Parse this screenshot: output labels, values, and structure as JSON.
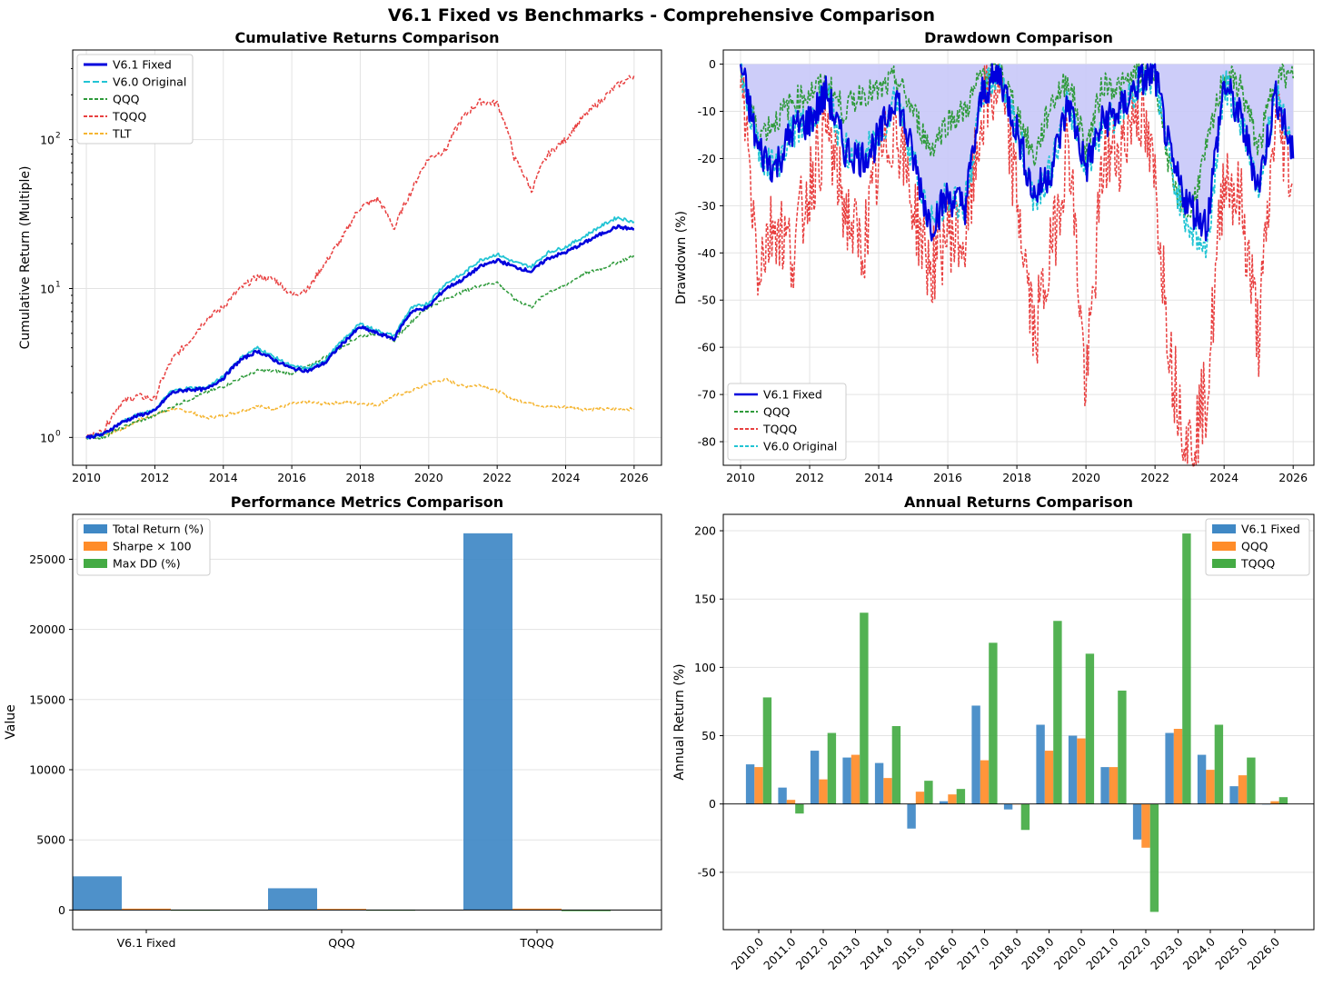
{
  "suptitle": "V6.1 Fixed vs Benchmarks - Comprehensive Comparison",
  "colors": {
    "v61": "#0000dd",
    "v60": "#22c4d4",
    "qqq": "#2e9a3a",
    "tqqq": "#e84040",
    "tlt": "#f5b531",
    "fill": "#c8c8f8",
    "bar_blue": "#3f88c5",
    "bar_orange": "#ff8c29",
    "bar_green": "#44ab44"
  },
  "chart_data": [
    {
      "id": "cumulative",
      "type": "line",
      "title": "Cumulative Returns Comparison",
      "xlabel": "",
      "ylabel": "Cumulative Return (Multiple)",
      "yscale": "log",
      "xlim": [
        2009.6,
        2026.8
      ],
      "ylim": [
        0.65,
        400
      ],
      "xticks": [
        2010,
        2012,
        2014,
        2016,
        2018,
        2020,
        2022,
        2024,
        2026
      ],
      "yticks": [
        {
          "v": 1,
          "label": "10",
          "sup": "0"
        },
        {
          "v": 10,
          "label": "10",
          "sup": "1"
        },
        {
          "v": 100,
          "label": "10",
          "sup": "2"
        }
      ],
      "grid": true,
      "legend_position": "top-left",
      "x": [
        2010.0,
        2010.5,
        2011.0,
        2011.5,
        2012.0,
        2012.5,
        2013.0,
        2013.5,
        2014.0,
        2014.5,
        2015.0,
        2015.5,
        2016.0,
        2016.5,
        2017.0,
        2017.5,
        2018.0,
        2018.5,
        2019.0,
        2019.5,
        2020.0,
        2020.5,
        2021.0,
        2021.5,
        2022.0,
        2022.5,
        2023.0,
        2023.5,
        2024.0,
        2024.5,
        2025.0,
        2025.5,
        2026.0
      ],
      "series": [
        {
          "name": "V6.1 Fixed",
          "key": "v61",
          "values": [
            1.0,
            1.05,
            1.25,
            1.4,
            1.5,
            2.0,
            2.1,
            2.1,
            2.5,
            3.3,
            3.8,
            3.3,
            2.9,
            2.8,
            3.2,
            4.3,
            5.5,
            5.0,
            4.6,
            7.0,
            7.5,
            10.0,
            11.5,
            14.0,
            15.5,
            14.0,
            13.0,
            16.0,
            17.5,
            20.0,
            23.0,
            26.0,
            25.0
          ]
        },
        {
          "name": "V6.0 Original",
          "key": "v60",
          "values": [
            1.0,
            1.05,
            1.26,
            1.42,
            1.52,
            2.05,
            2.15,
            2.15,
            2.55,
            3.4,
            4.0,
            3.45,
            3.0,
            2.9,
            3.35,
            4.5,
            5.8,
            5.2,
            4.8,
            7.4,
            8.0,
            10.8,
            12.5,
            15.5,
            17.0,
            15.0,
            14.0,
            17.5,
            19.0,
            22.0,
            26.0,
            30.0,
            28.0
          ]
        },
        {
          "name": "QQQ",
          "key": "qqq",
          "values": [
            1.0,
            1.0,
            1.15,
            1.28,
            1.4,
            1.6,
            1.8,
            2.0,
            2.2,
            2.5,
            2.8,
            2.8,
            2.7,
            3.0,
            3.5,
            4.1,
            4.8,
            5.0,
            4.5,
            6.0,
            7.5,
            8.5,
            9.5,
            10.5,
            11.0,
            8.5,
            7.5,
            9.5,
            10.5,
            12.5,
            13.5,
            15.0,
            16.5
          ]
        },
        {
          "name": "TQQQ",
          "key": "tqqq",
          "values": [
            1.0,
            1.1,
            1.7,
            1.9,
            1.8,
            3.3,
            4.4,
            6.2,
            7.5,
            10.0,
            12.0,
            11.5,
            9.0,
            10.0,
            15.0,
            22.0,
            35.0,
            40.0,
            25.0,
            45.0,
            75.0,
            85.0,
            140.0,
            180.0,
            175.0,
            75.0,
            45.0,
            80.0,
            100.0,
            140.0,
            180.0,
            230.0,
            270.0
          ]
        },
        {
          "name": "TLT",
          "key": "tlt",
          "values": [
            1.0,
            1.05,
            1.12,
            1.3,
            1.42,
            1.55,
            1.5,
            1.35,
            1.4,
            1.5,
            1.62,
            1.55,
            1.68,
            1.72,
            1.68,
            1.72,
            1.7,
            1.65,
            1.9,
            2.05,
            2.3,
            2.45,
            2.2,
            2.25,
            2.05,
            1.8,
            1.7,
            1.6,
            1.6,
            1.55,
            1.55,
            1.55,
            1.55
          ]
        }
      ]
    },
    {
      "id": "drawdown",
      "type": "line",
      "title": "Drawdown Comparison",
      "xlabel": "",
      "ylabel": "Drawdown (%)",
      "xlim": [
        2009.5,
        2026.6
      ],
      "ylim": [
        -85,
        3
      ],
      "xticks": [
        2010,
        2012,
        2014,
        2016,
        2018,
        2020,
        2022,
        2024,
        2026
      ],
      "yticks": [
        0,
        -10,
        -20,
        -30,
        -40,
        -50,
        -60,
        -70,
        -80
      ],
      "grid": true,
      "legend_position": "bottom-left",
      "x": [
        2010.0,
        2010.5,
        2011.0,
        2011.5,
        2012.0,
        2012.5,
        2013.0,
        2013.5,
        2014.0,
        2014.5,
        2015.0,
        2015.5,
        2016.0,
        2016.5,
        2017.0,
        2017.5,
        2018.0,
        2018.5,
        2019.0,
        2019.5,
        2020.0,
        2020.5,
        2021.0,
        2021.5,
        2022.0,
        2022.5,
        2023.0,
        2023.5,
        2024.0,
        2024.5,
        2025.0,
        2025.5,
        2026.0
      ],
      "series": [
        {
          "name": "V6.1 Fixed",
          "key": "v61",
          "values": [
            0,
            -18,
            -22,
            -14,
            -12,
            -6,
            -18,
            -20,
            -16,
            -6,
            -20,
            -34,
            -28,
            -30,
            -6,
            -2,
            -14,
            -28,
            -22,
            -8,
            -22,
            -12,
            -10,
            -4,
            -2,
            -22,
            -30,
            -34,
            -4,
            -12,
            -26,
            -6,
            -20
          ]
        },
        {
          "name": "QQQ",
          "key": "qqq",
          "values": [
            0,
            -15,
            -12,
            -8,
            -6,
            -4,
            -10,
            -6,
            -6,
            -3,
            -10,
            -18,
            -12,
            -10,
            -2,
            -1,
            -10,
            -20,
            -8,
            -3,
            -18,
            -4,
            -5,
            -2,
            -2,
            -26,
            -32,
            -18,
            -2,
            -5,
            -18,
            -2,
            -3
          ]
        },
        {
          "name": "TQQQ",
          "key": "tqqq",
          "values": [
            0,
            -42,
            -33,
            -40,
            -25,
            -14,
            -30,
            -40,
            -22,
            -12,
            -30,
            -44,
            -35,
            -38,
            -10,
            -4,
            -28,
            -58,
            -40,
            -15,
            -70,
            -20,
            -18,
            -8,
            -25,
            -65,
            -81,
            -70,
            -22,
            -30,
            -58,
            -10,
            -25
          ]
        },
        {
          "name": "V6.0 Original",
          "key": "v60",
          "values": [
            0,
            -18,
            -22,
            -14,
            -12,
            -6,
            -18,
            -20,
            -16,
            -6,
            -20,
            -34,
            -28,
            -30,
            -6,
            -2,
            -14,
            -28,
            -22,
            -8,
            -22,
            -12,
            -10,
            -4,
            -2,
            -24,
            -34,
            -40,
            -4,
            -12,
            -26,
            -6,
            -20
          ]
        }
      ]
    },
    {
      "id": "metrics",
      "type": "bar",
      "title": "Performance Metrics Comparison",
      "xlabel": "",
      "ylabel": "Value",
      "ylim": [
        -1400,
        28200
      ],
      "yticks": [
        0,
        5000,
        10000,
        15000,
        20000,
        25000
      ],
      "grid": true,
      "legend_position": "top-left",
      "categories": [
        "V6.1 Fixed",
        "QQQ",
        "TQQQ"
      ],
      "series": [
        {
          "name": "Total Return (%)",
          "key": "bar_blue",
          "values": [
            2400,
            1550,
            26850
          ]
        },
        {
          "name": "Sharpe × 100",
          "key": "bar_orange",
          "values": [
            100,
            85,
            100
          ]
        },
        {
          "name": "Max DD (%)",
          "key": "bar_green",
          "values": [
            -37,
            -35,
            -81
          ]
        }
      ]
    },
    {
      "id": "annual",
      "type": "bar",
      "title": "Annual Returns Comparison",
      "xlabel": "",
      "ylabel": "Annual Return (%)",
      "ylim": [
        -92,
        212
      ],
      "yticks": [
        200,
        150,
        100,
        50,
        0,
        -50
      ],
      "grid": true,
      "legend_position": "top-right",
      "categories": [
        "2010.0",
        "2011.0",
        "2012.0",
        "2013.0",
        "2014.0",
        "2015.0",
        "2016.0",
        "2017.0",
        "2018.0",
        "2019.0",
        "2020.0",
        "2021.0",
        "2022.0",
        "2023.0",
        "2024.0",
        "2025.0",
        "2026.0"
      ],
      "series": [
        {
          "name": "V6.1 Fixed",
          "key": "bar_blue",
          "values": [
            29,
            12,
            39,
            34,
            30,
            -18,
            2,
            72,
            -4,
            58,
            50,
            27,
            -26,
            52,
            36,
            13,
            0
          ]
        },
        {
          "name": "QQQ",
          "key": "bar_orange",
          "values": [
            27,
            3,
            18,
            36,
            19,
            9,
            7,
            32,
            0,
            39,
            48,
            27,
            -32,
            55,
            25,
            21,
            2
          ]
        },
        {
          "name": "TQQQ",
          "key": "bar_green",
          "values": [
            78,
            -7,
            52,
            140,
            57,
            17,
            11,
            118,
            -19,
            134,
            110,
            83,
            -79,
            198,
            58,
            34,
            5
          ]
        }
      ]
    }
  ]
}
